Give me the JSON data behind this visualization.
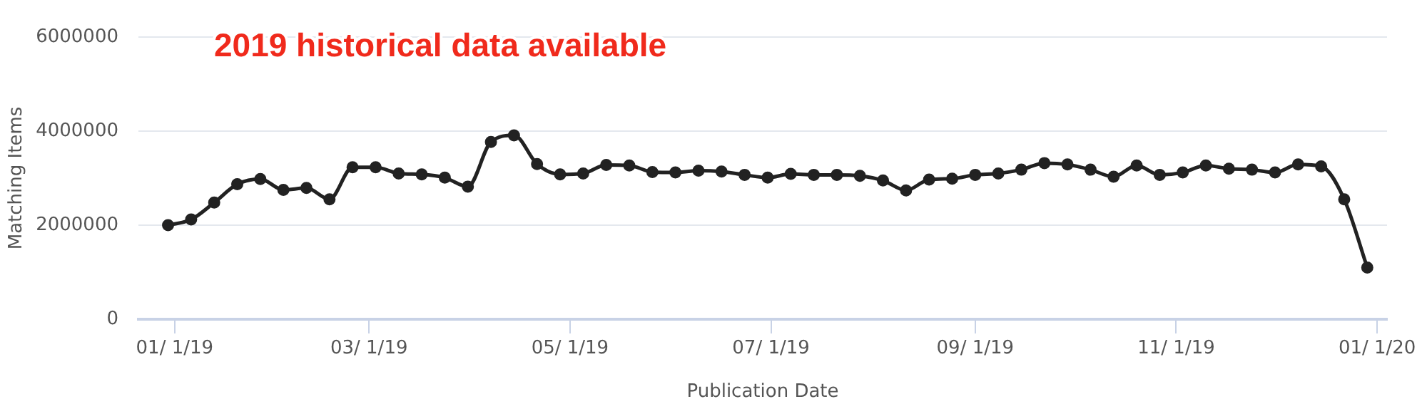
{
  "chart_data": {
    "type": "line",
    "title": "2019 historical data available",
    "xlabel": "Publication Date",
    "ylabel": "Matching Items",
    "x": [
      "2018-12-30",
      "2019-01-06",
      "2019-01-13",
      "2019-01-20",
      "2019-01-27",
      "2019-02-03",
      "2019-02-10",
      "2019-02-17",
      "2019-02-24",
      "2019-03-03",
      "2019-03-10",
      "2019-03-17",
      "2019-03-24",
      "2019-03-31",
      "2019-04-07",
      "2019-04-14",
      "2019-04-21",
      "2019-04-28",
      "2019-05-05",
      "2019-05-12",
      "2019-05-19",
      "2019-05-26",
      "2019-06-02",
      "2019-06-09",
      "2019-06-16",
      "2019-06-23",
      "2019-06-30",
      "2019-07-07",
      "2019-07-14",
      "2019-07-21",
      "2019-07-28",
      "2019-08-04",
      "2019-08-11",
      "2019-08-18",
      "2019-08-25",
      "2019-09-01",
      "2019-09-08",
      "2019-09-15",
      "2019-09-22",
      "2019-09-29",
      "2019-10-06",
      "2019-10-13",
      "2019-10-20",
      "2019-10-27",
      "2019-11-03",
      "2019-11-10",
      "2019-11-17",
      "2019-11-24",
      "2019-12-01",
      "2019-12-08",
      "2019-12-15",
      "2019-12-22",
      "2019-12-29"
    ],
    "series": [
      {
        "color": "#222222",
        "values": [
          2000000,
          2120000,
          2480000,
          2870000,
          2980000,
          2750000,
          2790000,
          2550000,
          3230000,
          3230000,
          3100000,
          3080000,
          3010000,
          2820000,
          3770000,
          3910000,
          3300000,
          3080000,
          3100000,
          3280000,
          3270000,
          3130000,
          3120000,
          3160000,
          3140000,
          3070000,
          3010000,
          3090000,
          3070000,
          3070000,
          3050000,
          2950000,
          2740000,
          2970000,
          2990000,
          3070000,
          3100000,
          3180000,
          3320000,
          3290000,
          3180000,
          3030000,
          3270000,
          3070000,
          3120000,
          3270000,
          3200000,
          3180000,
          3120000,
          3290000,
          3250000,
          2550000,
          1100000
        ]
      }
    ],
    "xlim": [
      "2018-12-21",
      "2020-01-04"
    ],
    "xticks": [
      {
        "value": "2019-01-01",
        "label": "01/ 1/19"
      },
      {
        "value": "2019-03-01",
        "label": "03/ 1/19"
      },
      {
        "value": "2019-05-01",
        "label": "05/ 1/19"
      },
      {
        "value": "2019-07-01",
        "label": "07/ 1/19"
      },
      {
        "value": "2019-09-01",
        "label": "09/ 1/19"
      },
      {
        "value": "2019-11-01",
        "label": "11/ 1/19"
      },
      {
        "value": "2020-01-01",
        "label": "01/ 1/20"
      }
    ],
    "ylim": [
      0,
      6000000
    ],
    "yticks": [
      0,
      2000000,
      4000000,
      6000000
    ],
    "grid": "y",
    "legend": false,
    "marker": "circle",
    "line_style": "solid"
  }
}
